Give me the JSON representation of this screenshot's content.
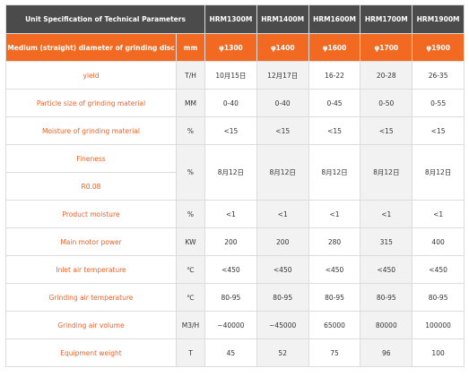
{
  "header": {
    "title": "Unit Specification of Technical Parameters",
    "models": [
      "HRM1300M",
      "HRM1400M",
      "HRM1600M",
      "HRM1700M",
      "HRM1900M"
    ]
  },
  "table": {
    "rows": [
      {
        "label": "Medium (straight) diameter of grinding disc",
        "unit": "mm",
        "values": [
          "φ1300",
          "φ1400",
          "φ1600",
          "φ1700",
          "φ1900"
        ]
      },
      {
        "label": "yield",
        "unit": "T/H",
        "values": [
          "10月15日",
          "12月17日",
          "16-22",
          "20-28",
          "26-35"
        ]
      },
      {
        "label": "Particle size of grinding material",
        "unit": "MM",
        "values": [
          "0-40",
          "0-40",
          "0-45",
          "0-50",
          "0-55"
        ]
      },
      {
        "label": "Moisture of grinding material",
        "unit": "%",
        "values": [
          "<15",
          "<15",
          "<15",
          "<15",
          "<15"
        ]
      },
      {
        "label": "Fineness",
        "sublabel": "R0.08",
        "unit": "%",
        "values": [
          "8月12日",
          "8月12日",
          "8月12日",
          "8月12日",
          "8月12日"
        ]
      },
      {
        "label": "Product moisture",
        "unit": "%",
        "values": [
          "<1",
          "<1",
          "<1",
          "<1",
          "<1"
        ]
      },
      {
        "label": "Main motor power",
        "unit": "KW",
        "values": [
          "200",
          "200",
          "280",
          "315",
          "400"
        ]
      },
      {
        "label": "Inlet air temperature",
        "unit": "℃",
        "values": [
          "<450",
          "<450",
          "<450",
          "<450",
          "<450"
        ]
      },
      {
        "label": "Grinding air temperature",
        "unit": "℃",
        "values": [
          "80-95",
          "80-95",
          "80-95",
          "80-95",
          "80-95"
        ]
      },
      {
        "label": "Grinding air volume",
        "unit": "M3/H",
        "values": [
          "~40000",
          "~45000",
          "65000",
          "80000",
          "100000"
        ]
      },
      {
        "label": "Equipment weight",
        "unit": "T",
        "values": [
          "45",
          "52",
          "75",
          "96",
          "100"
        ]
      }
    ]
  }
}
